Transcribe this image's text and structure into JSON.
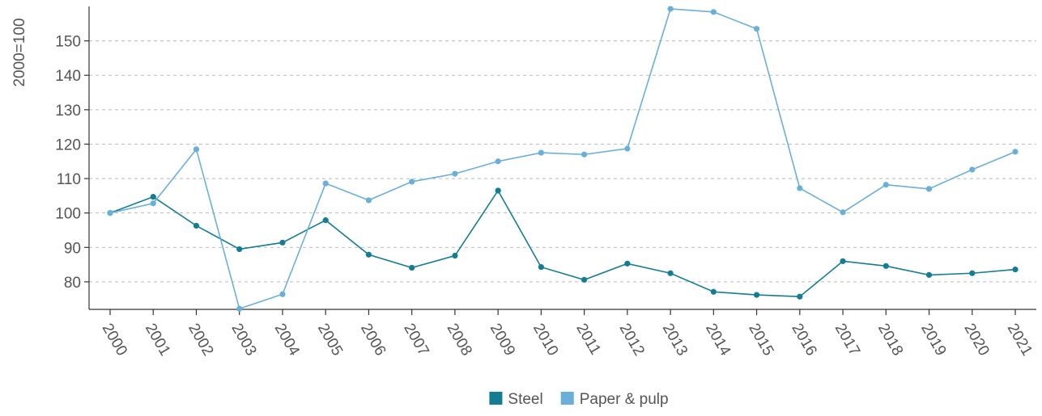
{
  "chart_data": {
    "type": "line",
    "y_label": "2000=100",
    "categories": [
      "2000",
      "2001",
      "2002",
      "2003",
      "2004",
      "2005",
      "2006",
      "2007",
      "2008",
      "2009",
      "2010",
      "2011",
      "2012",
      "2013",
      "2014",
      "2015",
      "2016",
      "2017",
      "2018",
      "2019",
      "2020",
      "2021"
    ],
    "series": [
      {
        "name": "Steel",
        "color": "#147d91",
        "values": [
          100,
          104.7,
          96.3,
          89.5,
          91.4,
          97.9,
          87.9,
          84.1,
          87.6,
          106.5,
          84.3,
          80.6,
          85.3,
          82.5,
          77.1,
          76.2,
          75.7,
          86,
          84.6,
          82,
          82.5,
          83.6
        ]
      },
      {
        "name": "Paper & pulp",
        "color": "#6aafd8",
        "values": [
          100,
          102.8,
          118.5,
          72.2,
          76.4,
          108.6,
          103.7,
          109.1,
          111.4,
          115,
          117.5,
          117,
          118.7,
          159.3,
          158.4,
          153.5,
          107.2,
          100.2,
          108.2,
          107,
          112.6,
          117.8
        ]
      }
    ],
    "ylim": [
      72,
      160
    ],
    "yticks": [
      80,
      90,
      100,
      110,
      120,
      130,
      140,
      150
    ],
    "grid": true,
    "legend": "bottom"
  }
}
